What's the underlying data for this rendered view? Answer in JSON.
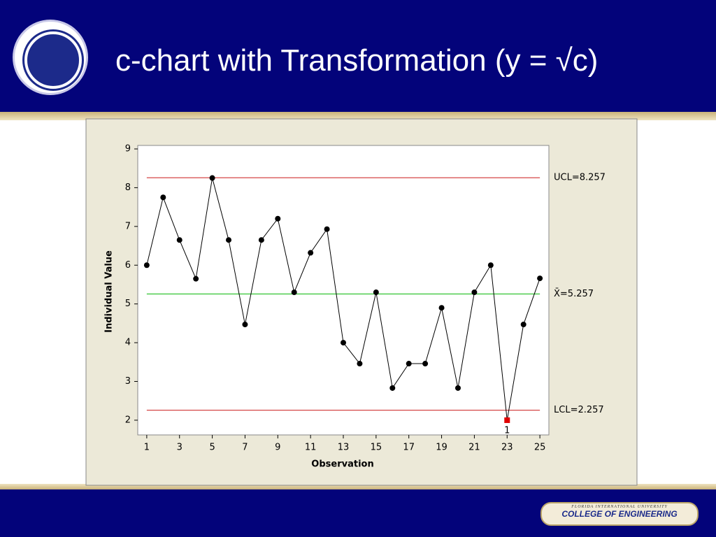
{
  "slide": {
    "title": "c-chart with Transformation (y = √c)",
    "footer_university": "FLORIDA INTERNATIONAL UNIVERSITY",
    "footer_college": "COLLEGE OF ENGINEERING"
  },
  "chart_data": {
    "type": "line",
    "x_label": "Observation",
    "y_label": "Individual Value",
    "x": [
      1,
      2,
      3,
      4,
      5,
      6,
      7,
      8,
      9,
      10,
      11,
      12,
      13,
      14,
      15,
      16,
      17,
      18,
      19,
      20,
      21,
      22,
      23,
      24,
      25
    ],
    "series": [
      {
        "name": "Individual Value",
        "color": "#000000",
        "values": [
          6.0,
          7.75,
          6.65,
          5.65,
          8.25,
          6.65,
          4.47,
          6.65,
          7.2,
          5.3,
          6.32,
          6.93,
          4.0,
          3.46,
          5.3,
          2.83,
          3.46,
          3.46,
          4.9,
          2.83,
          5.3,
          6.0,
          2.0,
          4.47,
          5.66
        ]
      }
    ],
    "flag_points": [
      {
        "x": 23,
        "label": "1",
        "color": "#e00000"
      }
    ],
    "control_lines": [
      {
        "value": 8.257,
        "label": "UCL=8.257",
        "color": "#d03030"
      },
      {
        "value": 5.257,
        "label": "X̄=5.257",
        "color": "#20c020"
      },
      {
        "value": 2.257,
        "label": "LCL=2.257",
        "color": "#d03030"
      }
    ],
    "xlim": [
      0.45,
      25.55
    ],
    "ylim": [
      1.62,
      9.09
    ],
    "xticks": [
      1,
      3,
      5,
      7,
      9,
      11,
      13,
      15,
      17,
      19,
      21,
      23,
      25
    ],
    "yticks": [
      2,
      3,
      4,
      5,
      6,
      7,
      8,
      9
    ]
  }
}
